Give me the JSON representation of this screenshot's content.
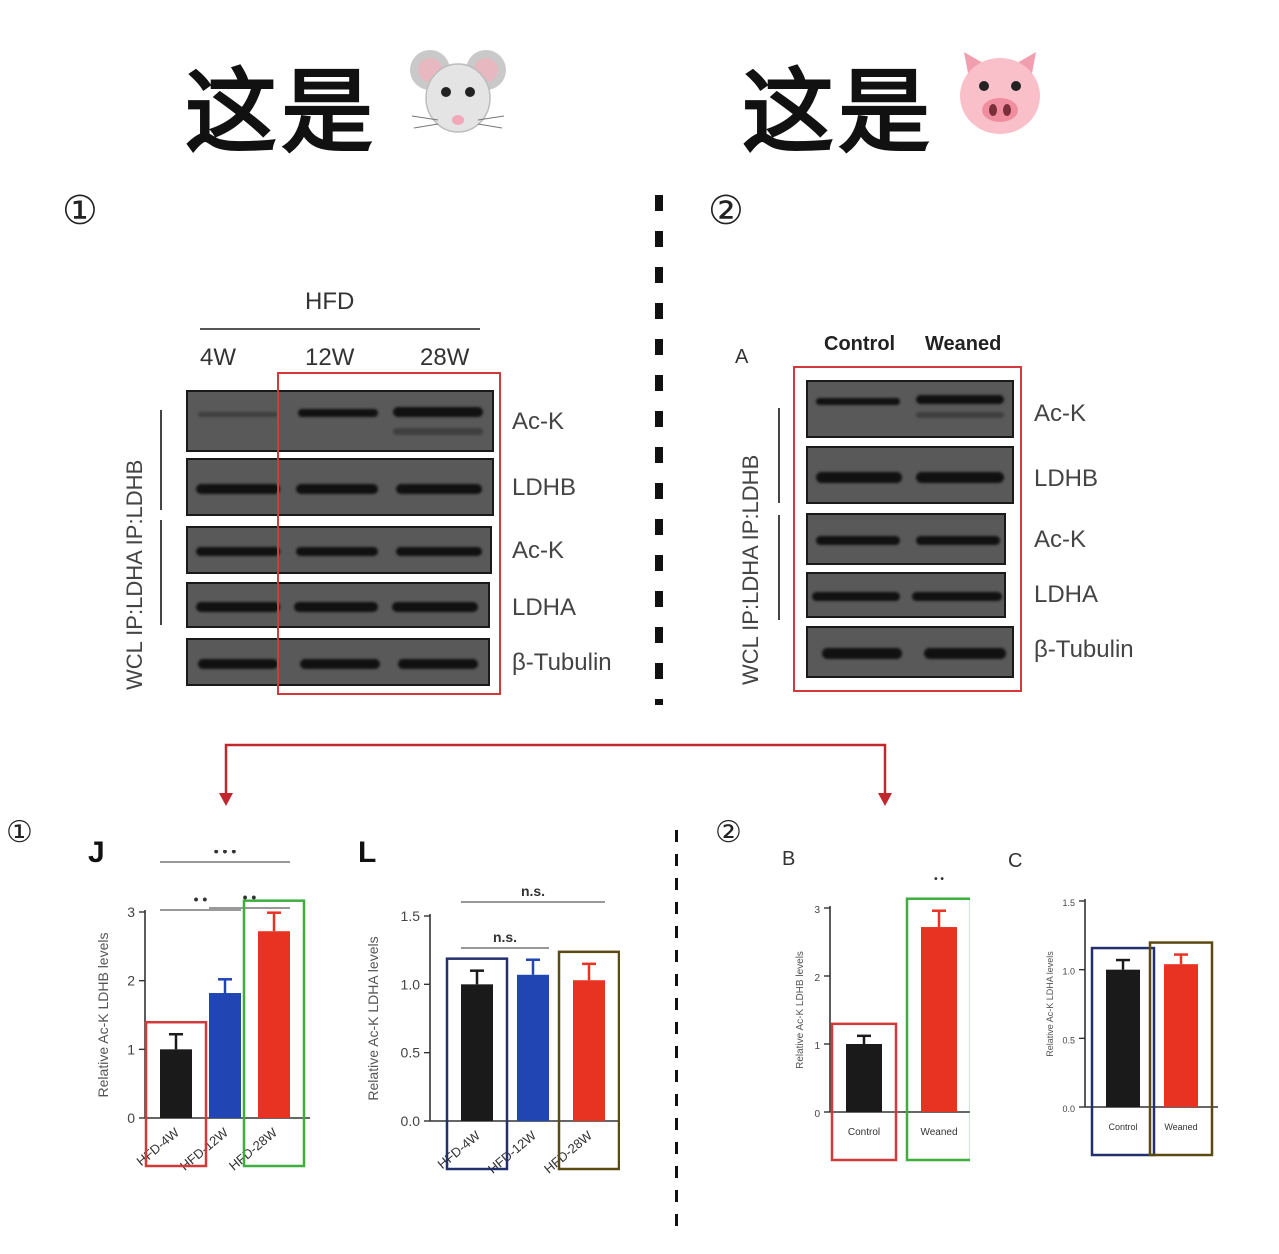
{
  "titles": {
    "left": "这是",
    "right": "这是"
  },
  "icons": {
    "left": "mouse-face-icon",
    "right": "pig-face-icon"
  },
  "markers": {
    "left_top": "①",
    "right_top": "②",
    "left_bottom": "①",
    "right_bottom": "②"
  },
  "left_blot": {
    "group_label": "HFD",
    "lanes": [
      "4W",
      "12W",
      "28W"
    ],
    "rows": [
      "Ac-K",
      "LDHB",
      "Ac-K",
      "LDHA",
      "β-Tubulin"
    ],
    "side_label": "WCL IP:LDHA IP:LDHB"
  },
  "right_blot": {
    "panel": "A",
    "lanes": [
      "Control",
      "Weaned"
    ],
    "rows": [
      "Ac-K",
      "LDHB",
      "Ac-K",
      "LDHA",
      "β-Tubulin"
    ],
    "side_label": "WCL IP:LDHA IP:LDHB"
  },
  "colors": {
    "highlight_red": "#d23a3a",
    "highlight_green": "#3fae3f",
    "highlight_navy": "#24306e",
    "highlight_olive": "#5b4a12",
    "arrow": "#c0282d",
    "bar_black": "#1a1a1a",
    "bar_blue": "#2146b3",
    "bar_red": "#e83222"
  },
  "chart_data": [
    {
      "panel": "J",
      "type": "bar",
      "ylabel": "Relative Ac-K LDHB levels",
      "ylim": [
        0,
        3
      ],
      "yticks": [
        "0",
        "1",
        "2",
        "3"
      ],
      "categories": [
        "HFD-4W",
        "HFD-12W",
        "HFD-28W"
      ],
      "values": [
        1.0,
        1.82,
        2.72
      ],
      "errors": [
        0.22,
        0.2,
        0.27
      ],
      "bar_colors": [
        "#1a1a1a",
        "#2146b3",
        "#e83222"
      ],
      "significance": [
        {
          "pair": [
            0,
            2
          ],
          "label": "• • •"
        },
        {
          "pair": [
            0,
            1
          ],
          "label": "• •"
        },
        {
          "pair": [
            1,
            2
          ],
          "label": "• •"
        }
      ]
    },
    {
      "panel": "L",
      "type": "bar",
      "ylabel": "Relative Ac-K LDHA levels",
      "ylim": [
        0,
        1.5
      ],
      "yticks": [
        "0.0",
        "0.5",
        "1.0",
        "1.5"
      ],
      "categories": [
        "HFD-4W",
        "HFD-12W",
        "HFD-28W"
      ],
      "values": [
        1.0,
        1.07,
        1.03
      ],
      "errors": [
        0.1,
        0.11,
        0.12
      ],
      "bar_colors": [
        "#1a1a1a",
        "#2146b3",
        "#e83222"
      ],
      "significance": [
        {
          "pair": [
            0,
            2
          ],
          "label": "n.s."
        },
        {
          "pair": [
            0,
            1
          ],
          "label": "n.s."
        }
      ]
    },
    {
      "panel": "B",
      "type": "bar",
      "ylabel": "Relative Ac-K LDHB levels",
      "ylim": [
        0,
        3
      ],
      "yticks": [
        "0",
        "1",
        "2",
        "3"
      ],
      "categories": [
        "Control",
        "Weaned"
      ],
      "values": [
        1.0,
        2.72
      ],
      "errors": [
        0.12,
        0.24
      ],
      "bar_colors": [
        "#1a1a1a",
        "#e83222"
      ],
      "significance": [
        {
          "pair": [
            1,
            1
          ],
          "label": "• •"
        }
      ]
    },
    {
      "panel": "C",
      "type": "bar",
      "ylabel": "Relative Ac-K LDHA levels",
      "ylim": [
        0,
        1.5
      ],
      "yticks": [
        "0.0",
        "0.5",
        "1.0",
        "1.5"
      ],
      "categories": [
        "Control",
        "Weaned"
      ],
      "values": [
        1.0,
        1.04
      ],
      "errors": [
        0.07,
        0.07
      ],
      "bar_colors": [
        "#1a1a1a",
        "#e83222"
      ],
      "significance": []
    }
  ]
}
